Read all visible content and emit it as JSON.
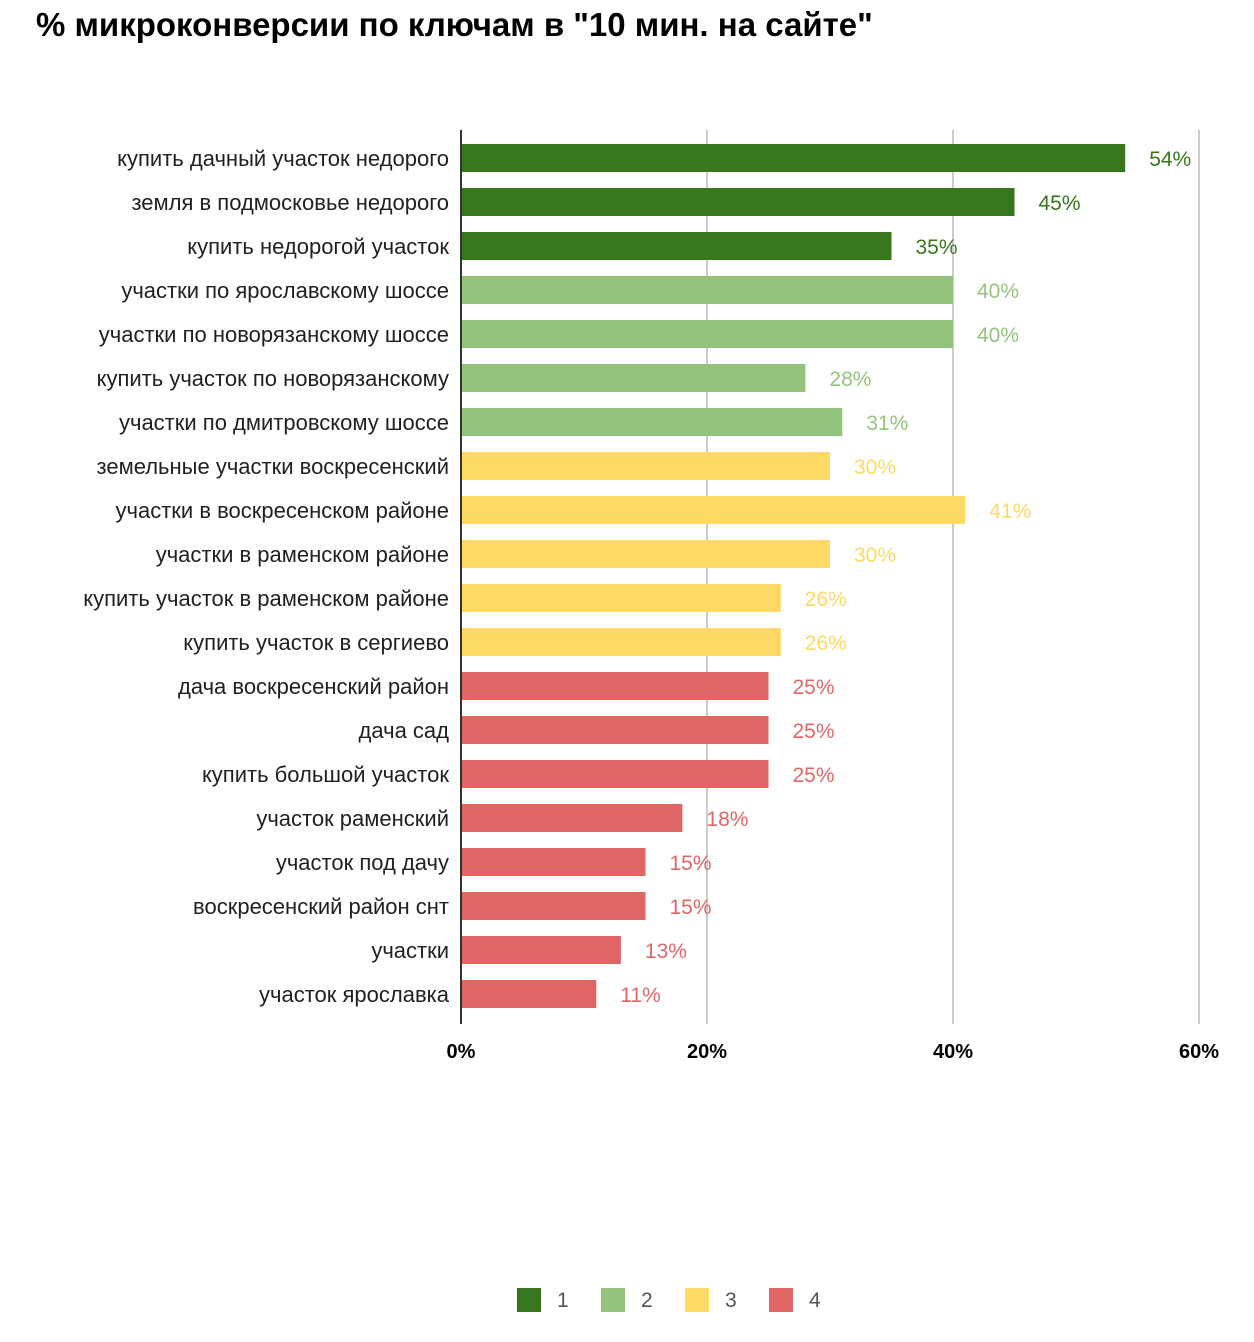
{
  "chart_data": {
    "type": "bar",
    "orientation": "horizontal",
    "title": "% микроконверсии по ключам в \"10 мин. на сайте\"",
    "xlabel": "",
    "ylabel": "",
    "xlim": [
      0,
      60
    ],
    "ticks": [
      "0%",
      "20%",
      "40%",
      "60%"
    ],
    "grid": true,
    "legend_position": "bottom",
    "groups": [
      {
        "name": "1",
        "color": "#38761d"
      },
      {
        "name": "2",
        "color": "#93c47d"
      },
      {
        "name": "3",
        "color": "#ffd966"
      },
      {
        "name": "4",
        "color": "#e06666"
      }
    ],
    "bars": [
      {
        "category": "купить дачный участок недорого",
        "value": 54,
        "label": "54%",
        "group": 0
      },
      {
        "category": "земля в подмосковье недорого",
        "value": 45,
        "label": "45%",
        "group": 0
      },
      {
        "category": "купить недорогой участок",
        "value": 35,
        "label": "35%",
        "group": 0
      },
      {
        "category": "участки по ярославскому шоссе",
        "value": 40,
        "label": "40%",
        "group": 1
      },
      {
        "category": "участки по новорязанскому шоссе",
        "value": 40,
        "label": "40%",
        "group": 1
      },
      {
        "category": "купить участок по новорязанскому",
        "value": 28,
        "label": "28%",
        "group": 1
      },
      {
        "category": "участки по дмитровскому шоссе",
        "value": 31,
        "label": "31%",
        "group": 1
      },
      {
        "category": "земельные участки воскресенский",
        "value": 30,
        "label": "30%",
        "group": 2
      },
      {
        "category": "участки в воскресенском районе",
        "value": 41,
        "label": "41%",
        "group": 2
      },
      {
        "category": "участки в раменском районе",
        "value": 30,
        "label": "30%",
        "group": 2
      },
      {
        "category": "купить участок в раменском районе",
        "value": 26,
        "label": "26%",
        "group": 2
      },
      {
        "category": "купить участок в сергиево",
        "value": 26,
        "label": "26%",
        "group": 2
      },
      {
        "category": "дача воскресенский район",
        "value": 25,
        "label": "25%",
        "group": 3
      },
      {
        "category": "дача сад",
        "value": 25,
        "label": "25%",
        "group": 3
      },
      {
        "category": "купить большой участок",
        "value": 25,
        "label": "25%",
        "group": 3
      },
      {
        "category": "участок раменский",
        "value": 18,
        "label": "18%",
        "group": 3
      },
      {
        "category": "участок под дачу",
        "value": 15,
        "label": "15%",
        "group": 3
      },
      {
        "category": "воскресенский район снт",
        "value": 15,
        "label": "15%",
        "group": 3
      },
      {
        "category": "участки",
        "value": 13,
        "label": "13%",
        "group": 3
      },
      {
        "category": "участок ярославка",
        "value": 11,
        "label": "11%",
        "group": 3
      }
    ]
  }
}
